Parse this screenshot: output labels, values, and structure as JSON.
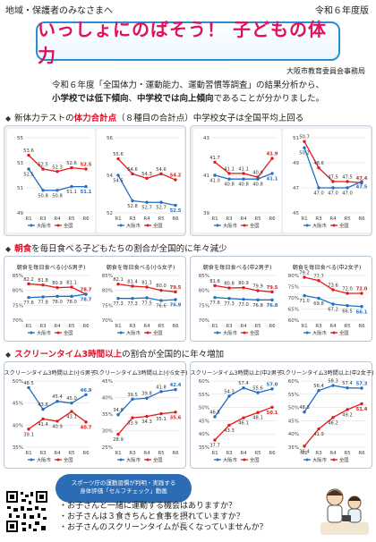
{
  "header": {
    "audience": "地域・保護者のみなさまへ",
    "edition": "令和６年度版",
    "title": "いっしょにのばそう！ 子どもの体力",
    "issuer": "大阪市教育委員会事務局",
    "lead_line1": "令和６年度「全国体力・運動能力、運動習慣等調査」の結果分析から、",
    "lead_line2_a": "小学校では低下傾向",
    "lead_line2_b": "、",
    "lead_line2_c": "中学校では向上傾向",
    "lead_line2_d": "であることが分かりました。"
  },
  "sections": {
    "fitness": {
      "mark": "◆",
      "pre": "新体力テストの",
      "hl": "体力合計点",
      "post": "（８種目の合計点）中学校女子は全国平均上回る"
    },
    "breakfast": {
      "mark": "◆",
      "hl": "朝食",
      "post": "を毎日食べる子どもたちの割合が全国的に年々減少"
    },
    "screen": {
      "mark": "◆",
      "hl": "スクリーンタイム3時間以上",
      "post": "の割合が全国的に年々増加"
    }
  },
  "legend": {
    "osaka": "大阪市",
    "national": "全国"
  },
  "colors": {
    "osaka": "#1f6fc5",
    "national": "#e01b1b",
    "orange": "#f08a24",
    "blue": "#3b7dd8",
    "title_pink": "#e0105a",
    "frame": "#2a8fd0"
  },
  "chart_data": [
    {
      "type": "line",
      "title": "",
      "x": [
        "R1",
        "R3",
        "R4",
        "R5",
        "R6"
      ],
      "ylim": [
        49,
        55
      ],
      "ticks": [
        "49",
        "51",
        "53",
        "55"
      ],
      "series": [
        {
          "name": "全国",
          "values": [
            53.6,
            52.5,
            52.3,
            52.6,
            52.5
          ]
        },
        {
          "name": "大阪市",
          "values": [
            52.5,
            50.8,
            50.8,
            51.1,
            51.1
          ]
        }
      ]
    },
    {
      "type": "line",
      "title": "",
      "x": [
        "R1",
        "R3",
        "R4",
        "R5",
        "R6"
      ],
      "ylim": [
        52,
        57
      ],
      "ticks": [
        "52",
        "54",
        "56"
      ],
      "series": [
        {
          "name": "全国",
          "values": [
            55.6,
            54.6,
            54.3,
            54.6,
            54.2
          ]
        },
        {
          "name": "大阪市",
          "values": [
            54.5,
            52.8,
            52.7,
            52.7,
            52.5
          ]
        }
      ]
    },
    {
      "type": "line",
      "title": "",
      "x": [
        "R1",
        "R3",
        "R4",
        "R5",
        "R6"
      ],
      "ylim": [
        39,
        43
      ],
      "ticks": [
        "39",
        "41",
        "43"
      ],
      "series": [
        {
          "name": "全国",
          "values": [
            41.7,
            41.1,
            41.1,
            40.9,
            41.9
          ]
        },
        {
          "name": "大阪市",
          "values": [
            41.0,
            40.8,
            40.8,
            40.8,
            41.1
          ]
        }
      ]
    },
    {
      "type": "line",
      "title": "",
      "x": [
        "R1",
        "R3",
        "R4",
        "R5",
        "R6"
      ],
      "ylim": [
        45,
        51
      ],
      "ticks": [
        "45",
        "47",
        "49",
        "51"
      ],
      "series": [
        {
          "name": "全国",
          "values": [
            50.7,
            48.6,
            47.5,
            47.5,
            47.4
          ]
        },
        {
          "name": "大阪市",
          "values": [
            50.2,
            47.0,
            47.0,
            47.0,
            47.5
          ]
        }
      ]
    },
    {
      "type": "line",
      "title": "朝食を毎日食べる(小5男子)",
      "x": [
        "R1",
        "R3",
        "R4",
        "R5",
        "R6"
      ],
      "ylim": [
        70,
        85
      ],
      "ticks": [
        "70%",
        "75%",
        "80%",
        "85%"
      ],
      "series": [
        {
          "name": "全国",
          "values": [
            82.2,
            81.8,
            80.9,
            81.1,
            78.7
          ]
        },
        {
          "name": "大阪市",
          "values": [
            77.6,
            77.8,
            78.0,
            78.0,
            78.7
          ]
        }
      ]
    },
    {
      "type": "line",
      "title": "朝食を毎日食べる(小5女子)",
      "x": [
        "R1",
        "R3",
        "R4",
        "R5",
        "R6"
      ],
      "ylim": [
        70,
        85
      ],
      "ticks": [
        "70%",
        "75%",
        "80%",
        "85%"
      ],
      "series": [
        {
          "name": "全国",
          "values": [
            82.1,
            81.4,
            81.1,
            80.0,
            79.5
          ]
        },
        {
          "name": "大阪市",
          "values": [
            77.3,
            77.3,
            77.5,
            76.6,
            76.9
          ]
        }
      ]
    },
    {
      "type": "line",
      "title": "朝食を毎日食べる(中2男子)",
      "x": [
        "R1",
        "R3",
        "R4",
        "R5",
        "R6"
      ],
      "ylim": [
        70,
        85
      ],
      "ticks": [
        "70%",
        "75%",
        "80%",
        "85%"
      ],
      "series": [
        {
          "name": "全国",
          "values": [
            81.6,
            80.8,
            80.9,
            79.9,
            79.5
          ]
        },
        {
          "name": "大阪市",
          "values": [
            77.6,
            77.3,
            77.0,
            76.8,
            76.8
          ]
        }
      ]
    },
    {
      "type": "line",
      "title": "朝食を毎日食べる(中2女子)",
      "x": [
        "R1",
        "R3",
        "R4",
        "R5",
        "R6"
      ],
      "ylim": [
        60,
        80
      ],
      "ticks": [
        "60%",
        "65%",
        "70%",
        "75%",
        "80%"
      ],
      "series": [
        {
          "name": "全国",
          "values": [
            79.2,
            77.7,
            73.6,
            72.0,
            72.0
          ]
        },
        {
          "name": "大阪市",
          "values": [
            71.0,
            69.8,
            67.2,
            66.5,
            66.1
          ]
        }
      ]
    },
    {
      "type": "line",
      "title": "スクリーンタイム3時間以上(小5男子)",
      "x": [
        "R1",
        "R3",
        "R4",
        "R5",
        "R6"
      ],
      "ylim": [
        35,
        50
      ],
      "ticks": [
        "35%",
        "40%",
        "45%",
        "50%"
      ],
      "series": [
        {
          "name": "大阪市",
          "values": [
            48.5,
            43.6,
            45.4,
            45.0,
            46.9
          ]
        },
        {
          "name": "全国",
          "values": [
            39.1,
            41.4,
            40.9,
            43.1,
            40.7
          ]
        }
      ]
    },
    {
      "type": "line",
      "title": "スクリーンタイム3時間以上(小5女子)",
      "x": [
        "R1",
        "R3",
        "R4",
        "R5",
        "R6"
      ],
      "ylim": [
        25,
        45
      ],
      "ticks": [
        "25%",
        "30%",
        "35%",
        "40%",
        "45%"
      ],
      "series": [
        {
          "name": "大阪市",
          "values": [
            34.8,
            39.5,
            39.8,
            41.8,
            42.4
          ]
        },
        {
          "name": "全国",
          "values": [
            28.9,
            33.9,
            34.3,
            35.1,
            35.6
          ]
        }
      ]
    },
    {
      "type": "line",
      "title": "スクリーンタイム3時間以上(中2男子)",
      "x": [
        "R1",
        "R3",
        "R4",
        "R5",
        "R6"
      ],
      "ylim": [
        35,
        60
      ],
      "ticks": [
        "35%",
        "40%",
        "45%",
        "50%",
        "55%",
        "60%"
      ],
      "series": [
        {
          "name": "大阪市",
          "values": [
            46.5,
            54.3,
            57.4,
            55.6,
            57.0
          ]
        },
        {
          "name": "全国",
          "values": [
            37.7,
            43.3,
            46.1,
            48.1,
            50.1
          ]
        }
      ]
    },
    {
      "type": "line",
      "title": "スクリーンタイム3時間以上(中2女子)",
      "x": [
        "R1",
        "R3",
        "R4",
        "R5",
        "R6"
      ],
      "ylim": [
        35,
        60
      ],
      "ticks": [
        "35%",
        "40%",
        "45%",
        "50%",
        "55%",
        "60%"
      ],
      "series": [
        {
          "name": "大阪市",
          "values": [
            48.3,
            56.4,
            58.3,
            57.4,
            57.3
          ]
        },
        {
          "name": "全国",
          "values": [
            35.4,
            41.9,
            46.2,
            49.2,
            51.4
          ]
        }
      ]
    }
  ],
  "footer": {
    "bubble_line1": "スポーツ庁の運動習慣が判明・実践する",
    "bubble_line2": "身体評価「セルフチェック」動画",
    "q1": "・お子さんと一緒に運動する機会はありますか？",
    "q2": "・お子さんは３食きちんと食事を摂れていますか？",
    "q3": "・お子さんのスクリーンタイムが長くなっていませんか？"
  }
}
